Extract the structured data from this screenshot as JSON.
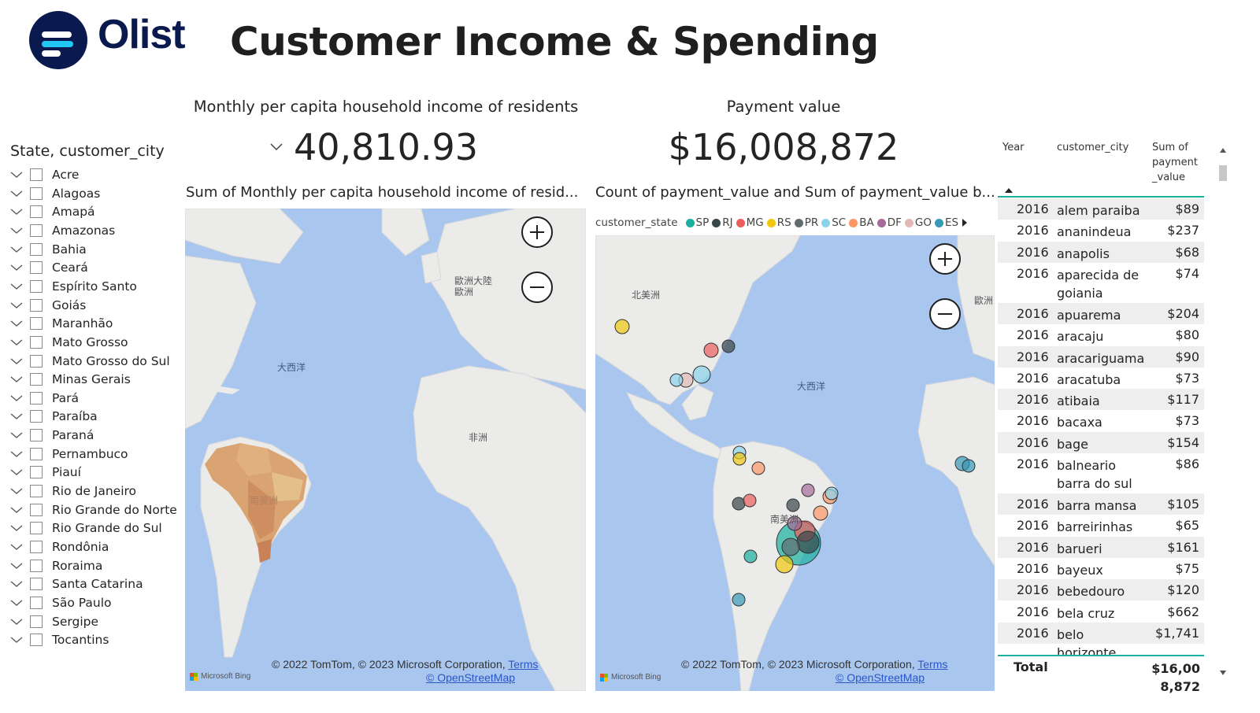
{
  "header": {
    "logo_text": "Olist",
    "title": "Customer Income & Spending"
  },
  "slicer": {
    "title": "State, customer_city",
    "items": [
      "Acre",
      "Alagoas",
      "Amapá",
      "Amazonas",
      "Bahia",
      "Ceará",
      "Espírito Santo",
      "Goiás",
      "Maranhão",
      "Mato Grosso",
      "Mato Grosso do Sul",
      "Minas Gerais",
      "Pará",
      "Paraíba",
      "Paraná",
      "Pernambuco",
      "Piauí",
      "Rio de Janeiro",
      "Rio Grande do Norte",
      "Rio Grande do Sul",
      "Rondônia",
      "Roraima",
      "Santa Catarina",
      "São Paulo",
      "Sergipe",
      "Tocantins"
    ]
  },
  "kpis": {
    "income": {
      "label": "Monthly per capita household income of residents",
      "value": "40,810.93"
    },
    "payment": {
      "label": "Payment value",
      "value": "$16,008,872"
    }
  },
  "map_income": {
    "title": "Sum of Monthly per capita household income of resid...",
    "labels": {
      "europe": "歐洲大陸\n歐洲",
      "atlantic": "大西洋",
      "africa": "非洲",
      "south_america": "南美洲"
    }
  },
  "map_payment": {
    "title": "Count of payment_value and Sum of payment_value b...",
    "legend_title": "customer_state",
    "legend": [
      {
        "name": "SP",
        "color": "#1aaf9f"
      },
      {
        "name": "RJ",
        "color": "#374649"
      },
      {
        "name": "MG",
        "color": "#ec5e5e"
      },
      {
        "name": "RS",
        "color": "#f2c80f"
      },
      {
        "name": "PR",
        "color": "#5f6b6d"
      },
      {
        "name": "SC",
        "color": "#8ad4eb"
      },
      {
        "name": "BA",
        "color": "#fe9666"
      },
      {
        "name": "DF",
        "color": "#a66999"
      },
      {
        "name": "GO",
        "color": "#e2b8b5"
      },
      {
        "name": "ES",
        "color": "#3599b8"
      }
    ],
    "labels": {
      "north_america": "北美洲",
      "atlantic": "大西洋",
      "south_america": "南美洲",
      "europe": "歐洲"
    }
  },
  "attribution": {
    "text": "© 2022 TomTom, © 2023 Microsoft Corporation,",
    "terms": "Terms",
    "osm": "© OpenStreetMap",
    "bing": "Microsoft Bing"
  },
  "table": {
    "columns": [
      "Year",
      "customer_city",
      "Sum of payment _value"
    ],
    "rows": [
      {
        "year": "2016",
        "city": "alem paraiba",
        "value": "$89"
      },
      {
        "year": "2016",
        "city": "ananindeua",
        "value": "$237"
      },
      {
        "year": "2016",
        "city": "anapolis",
        "value": "$68"
      },
      {
        "year": "2016",
        "city": "aparecida de goiania",
        "value": "$74"
      },
      {
        "year": "2016",
        "city": "apuarema",
        "value": "$204"
      },
      {
        "year": "2016",
        "city": "aracaju",
        "value": "$80"
      },
      {
        "year": "2016",
        "city": "aracariguama",
        "value": "$90"
      },
      {
        "year": "2016",
        "city": "aracatuba",
        "value": "$73"
      },
      {
        "year": "2016",
        "city": "atibaia",
        "value": "$117"
      },
      {
        "year": "2016",
        "city": "bacaxa",
        "value": "$73"
      },
      {
        "year": "2016",
        "city": "bage",
        "value": "$154"
      },
      {
        "year": "2016",
        "city": "balneario barra do sul",
        "value": "$86"
      },
      {
        "year": "2016",
        "city": "barra mansa",
        "value": "$105"
      },
      {
        "year": "2016",
        "city": "barreirinhas",
        "value": "$65"
      },
      {
        "year": "2016",
        "city": "barueri",
        "value": "$161"
      },
      {
        "year": "2016",
        "city": "bayeux",
        "value": "$75"
      },
      {
        "year": "2016",
        "city": "bebedouro",
        "value": "$120"
      },
      {
        "year": "2016",
        "city": "bela cruz",
        "value": "$662"
      },
      {
        "year": "2016",
        "city": "belo horizonte",
        "value": "$1,741"
      }
    ],
    "total_label": "Total",
    "total_value": "$16,008,872",
    "total_value_line1": "$16,00",
    "total_value_line2": "8,872"
  }
}
